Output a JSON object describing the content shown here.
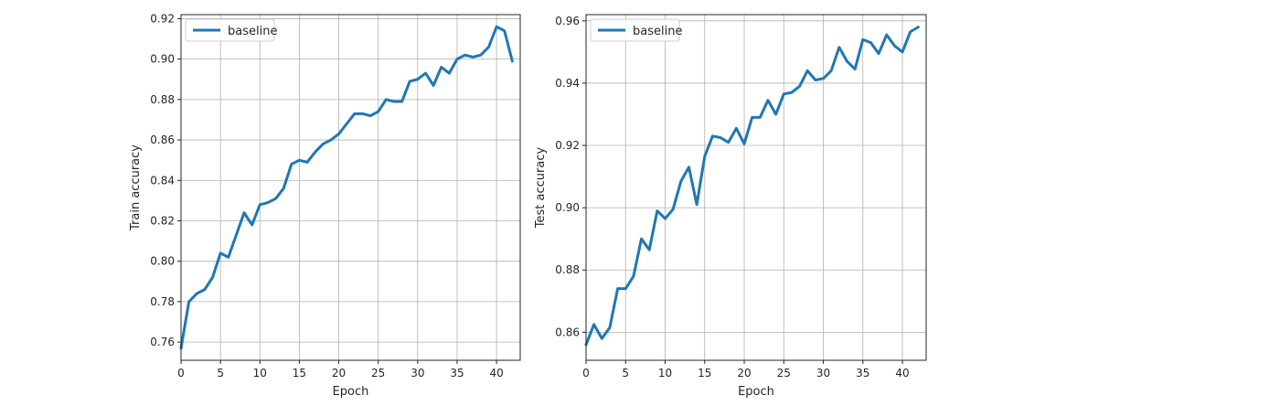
{
  "colors": {
    "series": "#1f77b4"
  },
  "chart_data": [
    {
      "type": "line",
      "xlabel": "Epoch",
      "ylabel": "Train accuracy",
      "xlim": [
        0,
        43
      ],
      "ylim": [
        0.751,
        0.922
      ],
      "xticks": [
        0,
        5,
        10,
        15,
        20,
        25,
        30,
        35,
        40
      ],
      "yticks": [
        0.76,
        0.78,
        0.8,
        0.82,
        0.84,
        0.86,
        0.88,
        0.9,
        0.92
      ],
      "xtick_labels": [
        "0",
        "5",
        "10",
        "15",
        "20",
        "25",
        "30",
        "35",
        "40"
      ],
      "ytick_labels": [
        "0.76",
        "0.78",
        "0.80",
        "0.82",
        "0.84",
        "0.86",
        "0.88",
        "0.90",
        "0.92"
      ],
      "grid": true,
      "legend_position": "upper-left",
      "series": [
        {
          "name": "baseline",
          "x": [
            0,
            1,
            2,
            3,
            4,
            5,
            6,
            7,
            8,
            9,
            10,
            11,
            12,
            13,
            14,
            15,
            16,
            17,
            18,
            19,
            20,
            21,
            22,
            23,
            24,
            25,
            26,
            27,
            28,
            29,
            30,
            31,
            32,
            33,
            34,
            35,
            36,
            37,
            38,
            39,
            40,
            41,
            42
          ],
          "values": [
            0.757,
            0.78,
            0.784,
            0.786,
            0.792,
            0.804,
            0.802,
            0.813,
            0.824,
            0.818,
            0.828,
            0.829,
            0.831,
            0.836,
            0.848,
            0.85,
            0.849,
            0.854,
            0.858,
            0.86,
            0.863,
            0.868,
            0.873,
            0.873,
            0.872,
            0.874,
            0.88,
            0.879,
            0.879,
            0.889,
            0.89,
            0.893,
            0.887,
            0.896,
            0.893,
            0.9,
            0.902,
            0.901,
            0.902,
            0.906,
            0.916,
            0.914,
            0.899
          ]
        }
      ]
    },
    {
      "type": "line",
      "xlabel": "Epoch",
      "ylabel": "Test accuracy",
      "xlim": [
        0,
        43
      ],
      "ylim": [
        0.851,
        0.962
      ],
      "xticks": [
        0,
        5,
        10,
        15,
        20,
        25,
        30,
        35,
        40
      ],
      "yticks": [
        0.86,
        0.88,
        0.9,
        0.92,
        0.94,
        0.96
      ],
      "xtick_labels": [
        "0",
        "5",
        "10",
        "15",
        "20",
        "25",
        "30",
        "35",
        "40"
      ],
      "ytick_labels": [
        "0.86",
        "0.88",
        "0.90",
        "0.92",
        "0.94",
        "0.96"
      ],
      "grid": true,
      "legend_position": "upper-left",
      "series": [
        {
          "name": "baseline",
          "x": [
            0,
            1,
            2,
            3,
            4,
            5,
            6,
            7,
            8,
            9,
            10,
            11,
            12,
            13,
            14,
            15,
            16,
            17,
            18,
            19,
            20,
            21,
            22,
            23,
            24,
            25,
            26,
            27,
            28,
            29,
            30,
            31,
            32,
            33,
            34,
            35,
            36,
            37,
            38,
            39,
            40,
            41,
            42
          ],
          "values": [
            0.856,
            0.8625,
            0.858,
            0.8615,
            0.874,
            0.874,
            0.878,
            0.89,
            0.8865,
            0.899,
            0.8965,
            0.8995,
            0.9085,
            0.913,
            0.901,
            0.9165,
            0.923,
            0.9225,
            0.921,
            0.9255,
            0.9205,
            0.929,
            0.929,
            0.9345,
            0.93,
            0.9365,
            0.937,
            0.939,
            0.944,
            0.941,
            0.9415,
            0.944,
            0.9515,
            0.947,
            0.9445,
            0.954,
            0.953,
            0.9495,
            0.9555,
            0.952,
            0.95,
            0.9565,
            0.958
          ]
        }
      ]
    }
  ]
}
